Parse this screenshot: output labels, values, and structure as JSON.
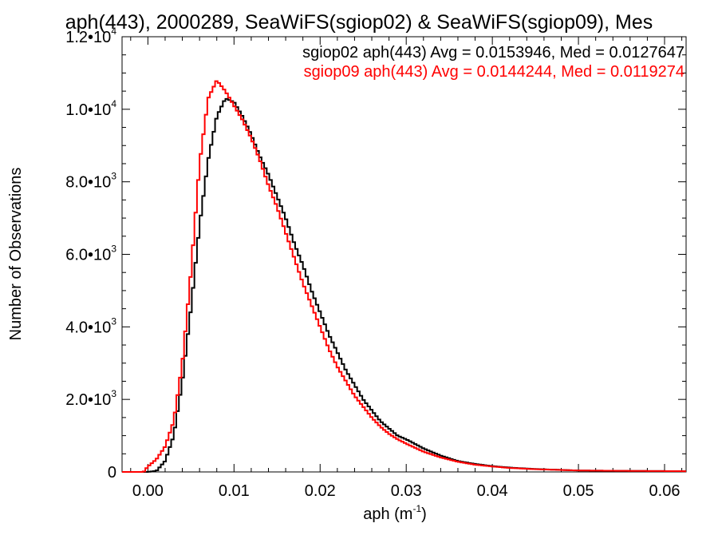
{
  "chart_data": {
    "type": "histogram",
    "title": "aph(443), 2000289, SeaWiFS(sgiop02) & SeaWiFS(sgiop09), Mes",
    "xlabel": "aph (m",
    "xlabel_unit_sup": "-1",
    "xlabel_close": ")",
    "ylabel": "Number of Observations",
    "xlim": [
      -0.003,
      0.0625
    ],
    "ylim": [
      0,
      12000
    ],
    "x_ticks": [
      {
        "value": 0.0,
        "label": "0.00"
      },
      {
        "value": 0.01,
        "label": "0.01"
      },
      {
        "value": 0.02,
        "label": "0.02"
      },
      {
        "value": 0.03,
        "label": "0.03"
      },
      {
        "value": 0.04,
        "label": "0.04"
      },
      {
        "value": 0.05,
        "label": "0.05"
      },
      {
        "value": 0.06,
        "label": "0.06"
      }
    ],
    "y_ticks": [
      {
        "value": 0,
        "mantissa": "0",
        "exp": ""
      },
      {
        "value": 2000,
        "mantissa": "2.0•10",
        "exp": "3"
      },
      {
        "value": 4000,
        "mantissa": "4.0•10",
        "exp": "3"
      },
      {
        "value": 6000,
        "mantissa": "6.0•10",
        "exp": "3"
      },
      {
        "value": 8000,
        "mantissa": "8.0•10",
        "exp": "3"
      },
      {
        "value": 10000,
        "mantissa": "1.0•10",
        "exp": "4"
      },
      {
        "value": 12000,
        "mantissa": "1.2•10",
        "exp": "4"
      }
    ],
    "grid": false,
    "legend_position": "top-right",
    "series": [
      {
        "name": "sgiop02",
        "legend": "sgiop02 aph(443) Avg = 0.0153946, Med = 0.0127647",
        "color": "#000000",
        "points": [
          [
            -0.003,
            0
          ],
          [
            0.0,
            0
          ],
          [
            0.001,
            30
          ],
          [
            0.002,
            300
          ],
          [
            0.003,
            1000
          ],
          [
            0.004,
            2500
          ],
          [
            0.005,
            4500
          ],
          [
            0.006,
            6800
          ],
          [
            0.007,
            8600
          ],
          [
            0.008,
            9800
          ],
          [
            0.009,
            10300
          ],
          [
            0.01,
            10200
          ],
          [
            0.011,
            9800
          ],
          [
            0.012,
            9300
          ],
          [
            0.013,
            8700
          ],
          [
            0.014,
            8200
          ],
          [
            0.015,
            7600
          ],
          [
            0.016,
            7000
          ],
          [
            0.017,
            6300
          ],
          [
            0.018,
            5700
          ],
          [
            0.019,
            5000
          ],
          [
            0.02,
            4400
          ],
          [
            0.021,
            3800
          ],
          [
            0.022,
            3300
          ],
          [
            0.023,
            2800
          ],
          [
            0.024,
            2400
          ],
          [
            0.025,
            2000
          ],
          [
            0.026,
            1700
          ],
          [
            0.027,
            1400
          ],
          [
            0.028,
            1200
          ],
          [
            0.029,
            1000
          ],
          [
            0.03,
            900
          ],
          [
            0.032,
            650
          ],
          [
            0.034,
            450
          ],
          [
            0.036,
            300
          ],
          [
            0.038,
            220
          ],
          [
            0.04,
            160
          ],
          [
            0.042,
            120
          ],
          [
            0.045,
            80
          ],
          [
            0.05,
            40
          ],
          [
            0.055,
            30
          ],
          [
            0.0625,
            20
          ]
        ]
      },
      {
        "name": "sgiop09",
        "legend": "sgiop09 aph(443) Avg = 0.0144244, Med = 0.0119274",
        "color": "#ff0000",
        "points": [
          [
            -0.003,
            0
          ],
          [
            -0.0005,
            0
          ],
          [
            0.0,
            150
          ],
          [
            0.001,
            350
          ],
          [
            0.002,
            700
          ],
          [
            0.003,
            1400
          ],
          [
            0.004,
            3000
          ],
          [
            0.005,
            5500
          ],
          [
            0.006,
            8500
          ],
          [
            0.007,
            10300
          ],
          [
            0.008,
            10800
          ],
          [
            0.009,
            10500
          ],
          [
            0.01,
            10100
          ],
          [
            0.011,
            9700
          ],
          [
            0.012,
            9200
          ],
          [
            0.013,
            8600
          ],
          [
            0.014,
            7900
          ],
          [
            0.015,
            7300
          ],
          [
            0.016,
            6600
          ],
          [
            0.017,
            5900
          ],
          [
            0.018,
            5200
          ],
          [
            0.019,
            4600
          ],
          [
            0.02,
            4000
          ],
          [
            0.021,
            3400
          ],
          [
            0.022,
            2900
          ],
          [
            0.023,
            2500
          ],
          [
            0.024,
            2100
          ],
          [
            0.025,
            1800
          ],
          [
            0.026,
            1500
          ],
          [
            0.027,
            1250
          ],
          [
            0.028,
            1050
          ],
          [
            0.029,
            900
          ],
          [
            0.03,
            780
          ],
          [
            0.032,
            560
          ],
          [
            0.034,
            400
          ],
          [
            0.036,
            280
          ],
          [
            0.038,
            200
          ],
          [
            0.04,
            150
          ],
          [
            0.042,
            110
          ],
          [
            0.045,
            75
          ],
          [
            0.05,
            40
          ],
          [
            0.055,
            30
          ],
          [
            0.0625,
            20
          ]
        ]
      }
    ]
  }
}
